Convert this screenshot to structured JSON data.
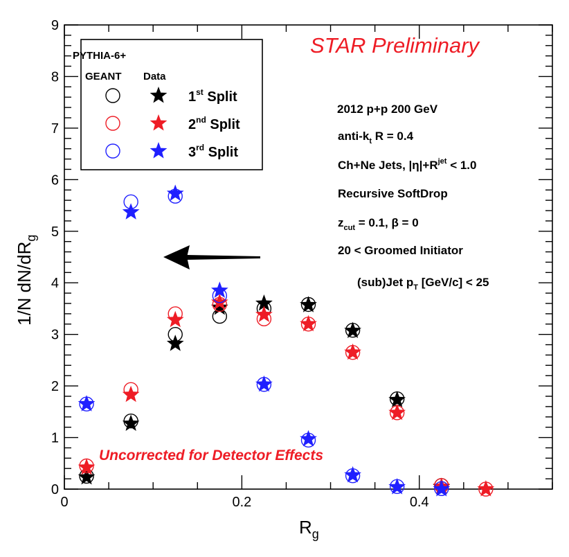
{
  "chart_data": {
    "type": "scatter",
    "watermark": "STAR Preliminary",
    "xlabel": "R",
    "xlabel_sub": "g",
    "ylabel": "1/N dN/dR",
    "ylabel_sub": "g",
    "xlim": [
      0,
      0.55
    ],
    "ylim": [
      0,
      9
    ],
    "x_ticks": [
      "0",
      "0.2",
      "0.4"
    ],
    "y_ticks": [
      "0",
      "1",
      "2",
      "3",
      "4",
      "5",
      "6",
      "7",
      "8",
      "9"
    ],
    "legend": {
      "line1": "PYTHIA-6+",
      "line2": "GEANT",
      "line2b": "Data",
      "placement": "top-left",
      "entries": [
        {
          "label": "1",
          "sup": "st",
          "suffix": " Split",
          "color": "#000000"
        },
        {
          "label": "2",
          "sup": "nd",
          "suffix": " Split",
          "color": "#ee1c25"
        },
        {
          "label": "3",
          "sup": "rd",
          "suffix": " Split",
          "color": "#1f1fff"
        }
      ]
    },
    "info": {
      "energy": "2012 p+p 200 GeV",
      "algo": "anti-k",
      "algo_sub": "t",
      "algo_tail": " R = 0.4",
      "jets": "Ch+Ne Jets, |η|+R",
      "jets_sup": "jet",
      "jets_tail": " < 1.0",
      "method": "Recursive SoftDrop",
      "zcut": "z",
      "zcut_sub": "cut",
      "zcut_tail": " = 0.1,  β = 0",
      "range1": "20 < Groomed Initiator",
      "range2": "(sub)Jet p",
      "range2_sub": "T",
      "range2_tail": " [GeV/c] < 25"
    },
    "note": "Uncorrected for Detector Effects",
    "x": [
      0.025,
      0.075,
      0.125,
      0.175,
      0.225,
      0.275,
      0.325,
      0.375,
      0.425,
      0.475
    ],
    "series": [
      {
        "name": "1st Split PYTHIA-6+GEANT",
        "marker": "open-circle",
        "color": "#000000",
        "values": [
          0.25,
          1.32,
          3.0,
          3.35,
          3.5,
          3.58,
          3.08,
          1.75,
          0.07,
          null
        ]
      },
      {
        "name": "1st Split Data",
        "marker": "star",
        "color": "#000000",
        "values": [
          0.23,
          1.27,
          2.82,
          3.52,
          3.6,
          3.57,
          3.07,
          1.73,
          0.04,
          null
        ]
      },
      {
        "name": "2nd Split PYTHIA-6+GEANT",
        "marker": "open-circle",
        "color": "#ee1c25",
        "values": [
          0.45,
          1.93,
          3.4,
          3.58,
          3.3,
          3.2,
          2.65,
          1.48,
          0.07,
          0.0
        ]
      },
      {
        "name": "2nd Split Data",
        "marker": "star",
        "color": "#ee1c25",
        "values": [
          0.42,
          1.83,
          3.28,
          3.62,
          3.38,
          3.2,
          2.65,
          1.48,
          0.05,
          0.0
        ]
      },
      {
        "name": "3rd Split PYTHIA-6+GEANT",
        "marker": "open-circle",
        "color": "#1f1fff",
        "values": [
          1.65,
          5.57,
          5.68,
          3.75,
          2.03,
          0.95,
          0.26,
          0.05,
          0.01,
          null
        ]
      },
      {
        "name": "3rd Split Data",
        "marker": "star",
        "color": "#1f1fff",
        "values": [
          1.65,
          5.37,
          5.73,
          3.85,
          2.03,
          0.97,
          0.27,
          0.04,
          0.0,
          null
        ]
      }
    ],
    "grid": false
  }
}
